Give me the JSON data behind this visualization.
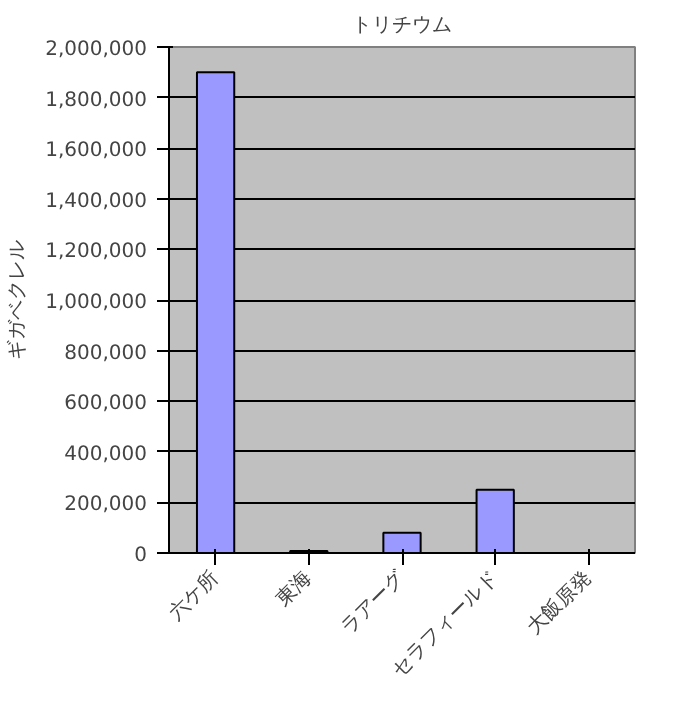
{
  "chart_data": {
    "type": "bar",
    "title": "トリチウム",
    "ylabel": "ギガベクレル",
    "categories": [
      "六ケ所",
      "東海",
      "ラアーグ",
      "セラフィールド",
      "大飯原発"
    ],
    "values": [
      1900000,
      8000,
      80000,
      250000,
      null
    ],
    "color": "#9999ff",
    "ylim": [
      0,
      2000000
    ],
    "yticks": [
      {
        "value": 0,
        "label": "0"
      },
      {
        "value": 200000,
        "label": "200,000"
      },
      {
        "value": 400000,
        "label": "400,000"
      },
      {
        "value": 600000,
        "label": "600,000"
      },
      {
        "value": 800000,
        "label": "800,000"
      },
      {
        "value": 1000000,
        "label": "1,000,000"
      },
      {
        "value": 1200000,
        "label": "1,200,000"
      },
      {
        "value": 1400000,
        "label": "1,400,000"
      },
      {
        "value": 1600000,
        "label": "1,600,000"
      },
      {
        "value": 1800000,
        "label": "1,800,000"
      },
      {
        "value": 2000000,
        "label": "2,000,000"
      }
    ],
    "grid": "y"
  }
}
